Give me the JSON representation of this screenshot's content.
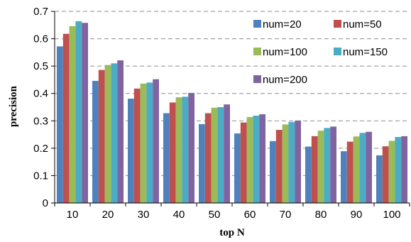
{
  "chart_data": {
    "type": "bar",
    "title": "",
    "xlabel": "top N",
    "ylabel": "precision",
    "ylim": [
      0,
      0.7
    ],
    "yticks": [
      "0",
      "0.1",
      "0.2",
      "0.3",
      "0.4",
      "0.5",
      "0.6",
      "0.7"
    ],
    "grid": true,
    "legend_position": "top-right",
    "categories": [
      "10",
      "20",
      "30",
      "40",
      "50",
      "60",
      "70",
      "80",
      "90",
      "100"
    ],
    "series": [
      {
        "name": "num=20",
        "color": "#4F81BD",
        "values": [
          0.572,
          0.446,
          0.381,
          0.328,
          0.288,
          0.254,
          0.226,
          0.206,
          0.189,
          0.174
        ]
      },
      {
        "name": "num=50",
        "color": "#C0504D",
        "values": [
          0.618,
          0.486,
          0.418,
          0.367,
          0.328,
          0.294,
          0.267,
          0.244,
          0.224,
          0.207
        ]
      },
      {
        "name": "num=100",
        "color": "#9BBB59",
        "values": [
          0.646,
          0.504,
          0.436,
          0.386,
          0.348,
          0.314,
          0.287,
          0.264,
          0.243,
          0.227
        ]
      },
      {
        "name": "num=150",
        "color": "#4BACC6",
        "values": [
          0.664,
          0.51,
          0.44,
          0.388,
          0.35,
          0.319,
          0.296,
          0.274,
          0.256,
          0.241
        ]
      },
      {
        "name": "num=200",
        "color": "#8064A2",
        "values": [
          0.658,
          0.521,
          0.452,
          0.402,
          0.36,
          0.324,
          0.301,
          0.279,
          0.26,
          0.244
        ]
      }
    ]
  }
}
